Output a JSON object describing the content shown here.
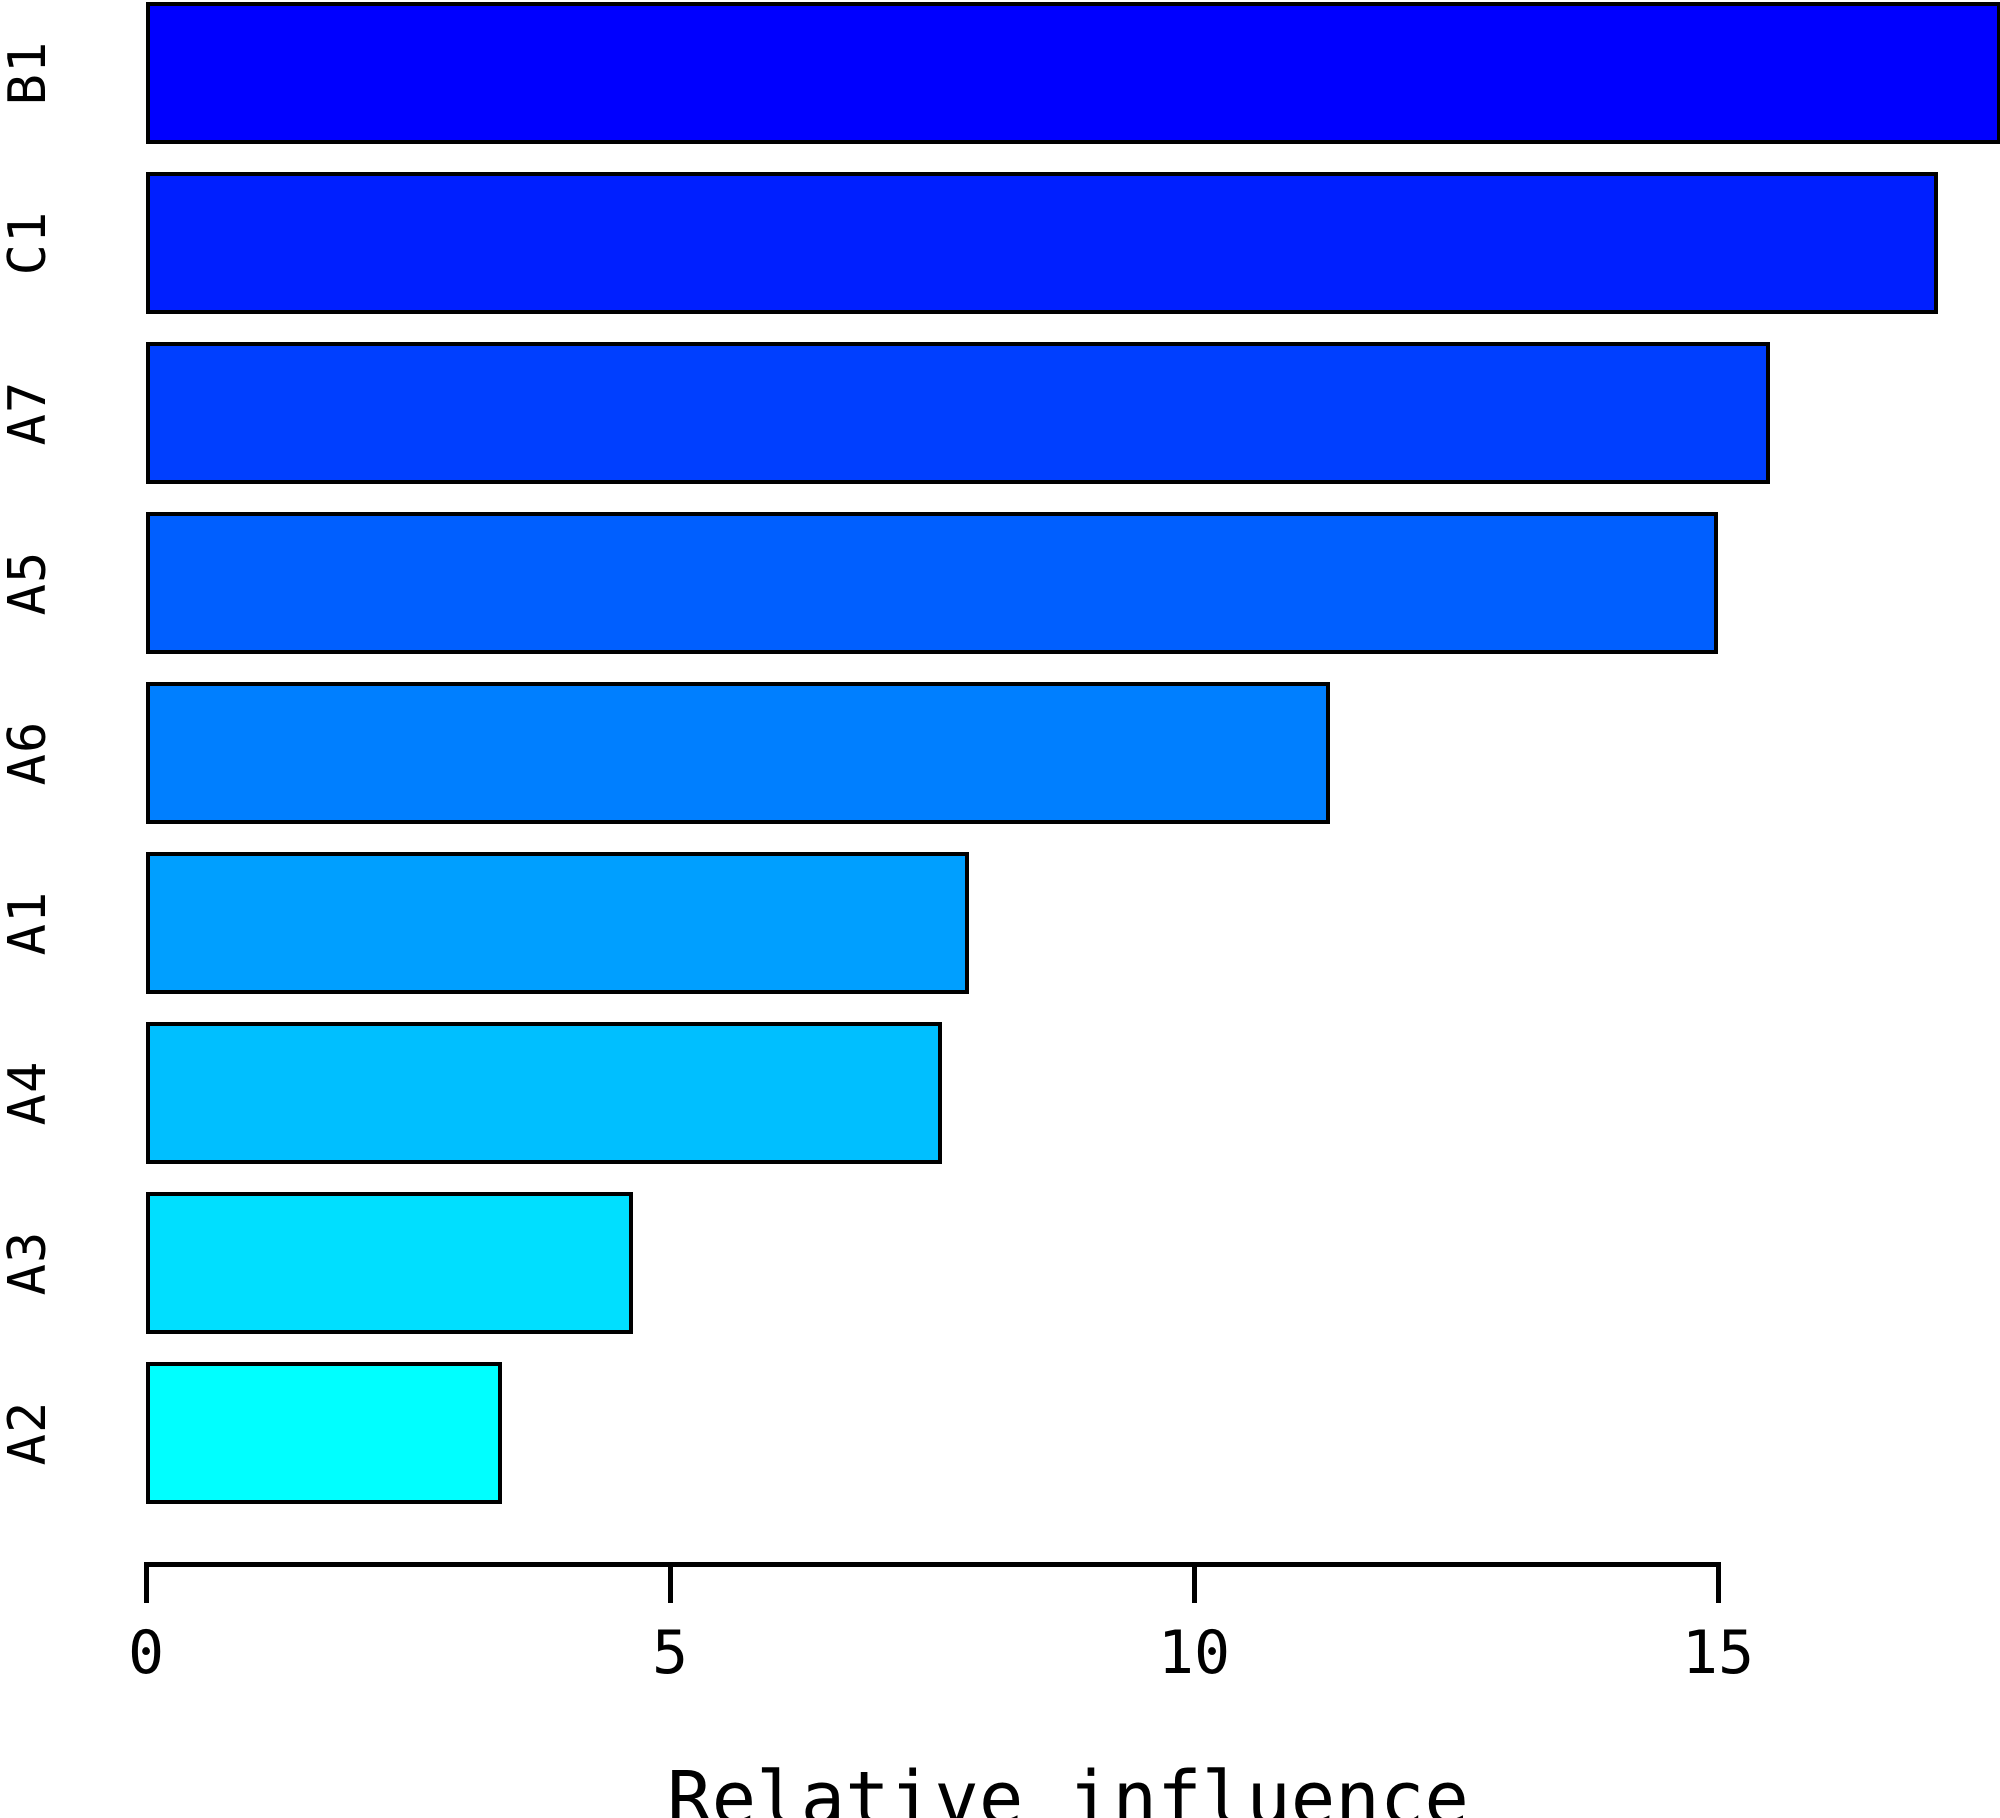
{
  "chart_data": {
    "type": "bar",
    "orientation": "horizontal",
    "title": "",
    "xlabel": "Relative influence",
    "ylabel": "",
    "categories": [
      "B1",
      "C1",
      "A7",
      "A5",
      "A6",
      "A1",
      "A4",
      "A3",
      "A2"
    ],
    "values": [
      17.7,
      17.1,
      15.5,
      15.0,
      11.3,
      7.85,
      7.6,
      4.65,
      3.4
    ],
    "bar_colors": [
      "#0000FF",
      "#001FFF",
      "#003FFF",
      "#005FFF",
      "#007FFF",
      "#009FFF",
      "#00BFFF",
      "#00DFFF",
      "#00FFFF"
    ],
    "bar_border_color": "#000000",
    "x_ticks": [
      0,
      5,
      10,
      15
    ],
    "x_tick_labels": [
      "0",
      "5",
      "10",
      "15"
    ],
    "xlim": [
      0,
      15
    ],
    "grid": false,
    "legend": null,
    "background_color": "#FFFFFF",
    "text_color": "#000000"
  }
}
